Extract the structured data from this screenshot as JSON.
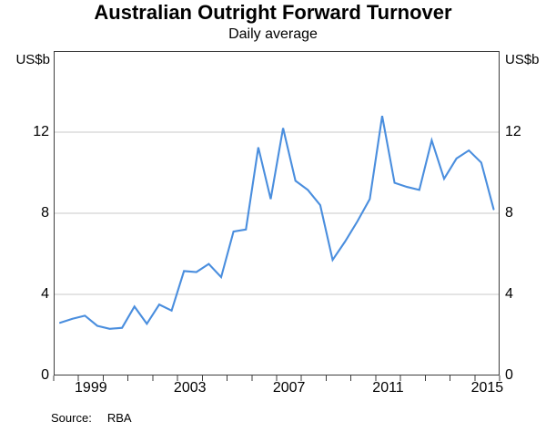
{
  "header": {
    "title": "Australian Outright Forward Turnover",
    "subtitle": "Daily average"
  },
  "axes": {
    "left_unit": "US$b",
    "right_unit": "US$b"
  },
  "footer": {
    "source_label": "Source:",
    "source_value": "RBA"
  },
  "colors": {
    "line": "#4a8ede",
    "grid": "#c9c9c9",
    "frame": "#3d3d3d",
    "text": "#000000"
  },
  "chart_data": {
    "type": "line",
    "title": "Australian Outright Forward Turnover",
    "subtitle": "Daily average",
    "ylabel": "US$b",
    "ylim": [
      0,
      16
    ],
    "y_ticks": [
      0,
      4,
      8,
      12
    ],
    "gridlines": [
      4,
      8,
      12
    ],
    "grid": true,
    "legend": "none",
    "x_axis": {
      "start_year": 1998,
      "end_year": 2016,
      "tick_every": 1,
      "label_years": [
        1999,
        2003,
        2007,
        2011,
        2015
      ],
      "points_start": 1998.26,
      "points_step": 0.5
    },
    "x": [
      "1998 H1",
      "1998 H2",
      "1999 H1",
      "1999 H2",
      "2000 H1",
      "2000 H2",
      "2001 H1",
      "2001 H2",
      "2002 H1",
      "2002 H2",
      "2003 H1",
      "2003 H2",
      "2004 H1",
      "2004 H2",
      "2005 H1",
      "2005 H2",
      "2006 H1",
      "2006 H2",
      "2007 H1",
      "2007 H2",
      "2008 H1",
      "2008 H2",
      "2009 H1",
      "2009 H2",
      "2010 H1",
      "2010 H2",
      "2011 H1",
      "2011 H2",
      "2012 H1",
      "2012 H2",
      "2013 H1",
      "2013 H2",
      "2014 H1",
      "2014 H2",
      "2015 H1",
      "2015 H2"
    ],
    "series": [
      {
        "name": "Outright forward turnover",
        "color": "#4a8ede",
        "values": [
          2.6,
          2.8,
          2.95,
          2.45,
          2.3,
          2.35,
          3.4,
          2.55,
          3.5,
          3.2,
          5.15,
          5.1,
          5.5,
          4.85,
          7.1,
          7.2,
          11.25,
          8.7,
          12.2,
          9.6,
          9.15,
          8.4,
          5.7,
          6.6,
          7.6,
          8.7,
          12.8,
          9.5,
          9.3,
          9.15,
          11.6,
          9.7,
          10.7,
          11.1,
          10.5,
          8.2
        ]
      }
    ],
    "source": "RBA"
  }
}
